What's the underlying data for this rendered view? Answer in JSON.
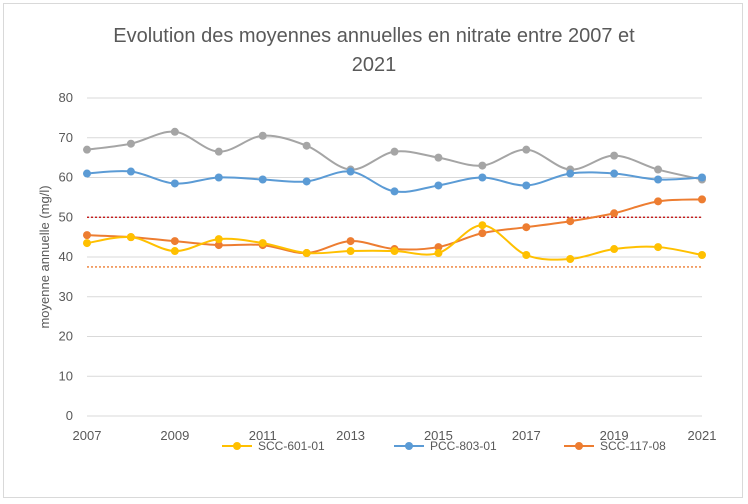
{
  "chart_data": {
    "type": "line",
    "title_line1": "Evolution des moyennes annuelles en nitrate entre 2007 et",
    "title_line2": "2021",
    "ylabel": "moyenne annuelle (mg/l)",
    "xlabel": "",
    "xlim": [
      2007,
      2021
    ],
    "ylim": [
      0,
      80
    ],
    "yticks": [
      0,
      10,
      20,
      30,
      40,
      50,
      60,
      70,
      80
    ],
    "xticks": [
      2007,
      2009,
      2011,
      2013,
      2015,
      2017,
      2019,
      2021
    ],
    "grid": "horizontal",
    "legend_position": "bottom",
    "x": [
      2007,
      2008,
      2009,
      2010,
      2011,
      2012,
      2013,
      2014,
      2015,
      2016,
      2017,
      2018,
      2019,
      2020,
      2021
    ],
    "series": [
      {
        "name": "SCC-601-01",
        "color": "#FFC000",
        "values": [
          43.5,
          45,
          41.5,
          44.5,
          43.5,
          41,
          41.5,
          41.5,
          41,
          48,
          40.5,
          39.5,
          42,
          42.5,
          40.5
        ],
        "in_legend": true
      },
      {
        "name": "PCC-803-01",
        "color": "#5B9BD5",
        "values": [
          61,
          61.5,
          58.5,
          60,
          59.5,
          59,
          61.5,
          56.5,
          58,
          60,
          58,
          61,
          61,
          59.5,
          60
        ],
        "in_legend": true
      },
      {
        "name": "",
        "color": "#A5A5A5",
        "values": [
          67,
          68.5,
          71.5,
          66.5,
          70.5,
          68,
          62,
          66.5,
          65,
          63,
          67,
          62,
          65.5,
          62,
          59.5
        ],
        "in_legend": false
      },
      {
        "name": "SCC-117-08",
        "color": "#ED7D31",
        "values": [
          45.5,
          45,
          44,
          43,
          43,
          41,
          44,
          42,
          42.5,
          46,
          47.5,
          49,
          51,
          54,
          54.5
        ],
        "in_legend": true
      }
    ],
    "reference_lines": [
      {
        "value": 50,
        "color": "#C00000"
      },
      {
        "value": 37.5,
        "color": "#ED7D31"
      }
    ]
  }
}
